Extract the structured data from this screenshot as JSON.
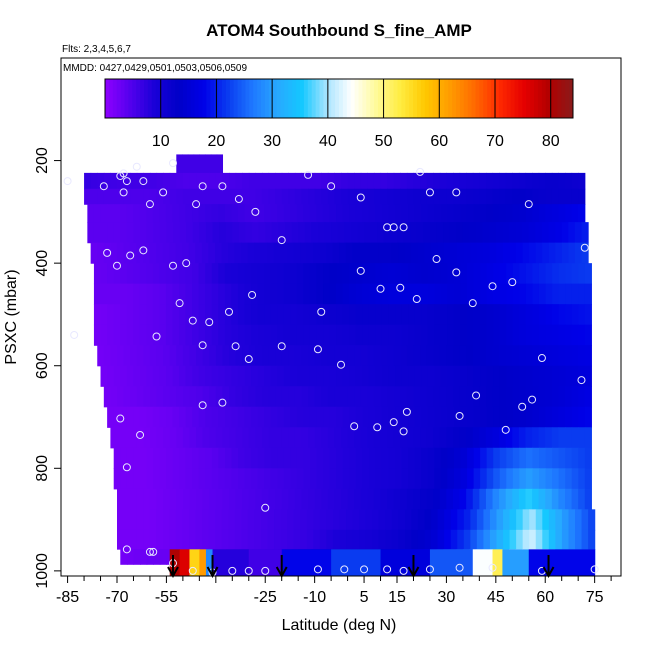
{
  "chart_data": {
    "type": "heatmap",
    "title": "ATOM4 Southbound S_fine_AMP",
    "subtitle_flights": "Flts: 2,3,4,5,6,7",
    "subtitle_dates": "MMDD: 0427,0429,0501,0503,0506,0509",
    "xlabel": "Latitude (deg N)",
    "ylabel": "PSXC (mbar)",
    "xlim": [
      -87,
      83
    ],
    "ylim": [
      1010,
      0
    ],
    "x_ticks": [
      -85,
      -70,
      -55,
      -40,
      -25,
      -10,
      5,
      15,
      30,
      45,
      60,
      75
    ],
    "x_tick_labels": [
      "-85",
      "-70",
      "-55",
      "-25",
      "-10",
      "5",
      "15",
      "30",
      "45",
      "60",
      "75"
    ],
    "x_tick_label_values": [
      -85,
      -70,
      -55,
      -25,
      -10,
      5,
      15,
      30,
      45,
      60,
      75
    ],
    "x_minor_ticks": [
      -80,
      -75,
      -65,
      -60,
      -50,
      -45,
      -35,
      -30,
      -20,
      -15,
      -5,
      0,
      10,
      20,
      25,
      35,
      40,
      50,
      55,
      65,
      70,
      80
    ],
    "y_ticks": [
      200,
      400,
      600,
      800,
      1000
    ],
    "y_tick_labels": [
      "200",
      "400",
      "600",
      "800",
      "1000"
    ],
    "colorbar": {
      "min": 0,
      "max": 84,
      "ticks": [
        10,
        20,
        30,
        40,
        50,
        60,
        70,
        80
      ],
      "tick_labels": [
        "10",
        "20",
        "30",
        "40",
        "50",
        "60",
        "70",
        "80"
      ],
      "colors": [
        "#8f00ff",
        "#5500ee",
        "#1a00d8",
        "#0000c8",
        "#0000e8",
        "#0a3cf0",
        "#1e78ff",
        "#28a8ff",
        "#14c8ff",
        "#a8e4ff",
        "#ffffff",
        "#fffa9a",
        "#ffec40",
        "#ffc800",
        "#ff9c00",
        "#ff6a00",
        "#ff2a00",
        "#e60000",
        "#b30000",
        "#8a1a1a"
      ]
    },
    "arrows_latitude": [
      -53,
      -41,
      -20,
      20,
      61
    ],
    "bands": [
      {
        "p": 210,
        "lat": [
          -52,
          -38
        ],
        "values": [
          6
        ]
      },
      {
        "p": 240,
        "lat": [
          -80,
          72
        ],
        "values": [
          7,
          6,
          6,
          5,
          5,
          6,
          6,
          6,
          7,
          7,
          8,
          9,
          10,
          11,
          12,
          11
        ]
      },
      {
        "p": 270,
        "lat": [
          -80,
          72
        ],
        "values": [
          5,
          5,
          5,
          6,
          6,
          6,
          7,
          8,
          9,
          10,
          11,
          11,
          12,
          13,
          12,
          12
        ]
      },
      {
        "p": 300,
        "lat": [
          -79,
          72
        ],
        "values": [
          4,
          4,
          5,
          6,
          7,
          6,
          7,
          8,
          9,
          10,
          11,
          12,
          13,
          14,
          16,
          18
        ]
      },
      {
        "p": 340,
        "lat": [
          -79,
          73
        ],
        "values": [
          4,
          4,
          5,
          6,
          8,
          7,
          8,
          9,
          10,
          11,
          12,
          13,
          14,
          15,
          17,
          20
        ]
      },
      {
        "p": 380,
        "lat": [
          -78,
          73
        ],
        "values": [
          3,
          4,
          5,
          6,
          8,
          9,
          10,
          11,
          13,
          13,
          14,
          15,
          16,
          18,
          20,
          22
        ]
      },
      {
        "p": 420,
        "lat": [
          -77,
          74
        ],
        "values": [
          3,
          4,
          5,
          6,
          9,
          10,
          11,
          13,
          14,
          15,
          14,
          15,
          17,
          19,
          21,
          22
        ]
      },
      {
        "p": 460,
        "lat": [
          -77,
          74
        ],
        "values": [
          3,
          3,
          4,
          6,
          8,
          10,
          11,
          13,
          15,
          16,
          16,
          15,
          17,
          18,
          20,
          20
        ]
      },
      {
        "p": 500,
        "lat": [
          -77,
          74
        ],
        "values": [
          2,
          3,
          4,
          6,
          8,
          10,
          10,
          11,
          12,
          12,
          12,
          13,
          14,
          16,
          18,
          19
        ]
      },
      {
        "p": 540,
        "lat": [
          -77,
          74
        ],
        "values": [
          2,
          3,
          4,
          6,
          8,
          9,
          10,
          10,
          11,
          11,
          12,
          13,
          14,
          16,
          17,
          18
        ]
      },
      {
        "p": 580,
        "lat": [
          -76,
          74
        ],
        "values": [
          2,
          3,
          4,
          6,
          8,
          9,
          9,
          10,
          10,
          11,
          12,
          13,
          14,
          15,
          16,
          17
        ]
      },
      {
        "p": 620,
        "lat": [
          -75,
          74
        ],
        "values": [
          2,
          3,
          4,
          6,
          7,
          8,
          9,
          9,
          10,
          11,
          11,
          12,
          13,
          14,
          15,
          16
        ]
      },
      {
        "p": 660,
        "lat": [
          -74,
          74
        ],
        "values": [
          2,
          3,
          4,
          5,
          7,
          8,
          8,
          9,
          9,
          10,
          11,
          12,
          13,
          14,
          15,
          17
        ]
      },
      {
        "p": 700,
        "lat": [
          -73,
          74
        ],
        "values": [
          2,
          2,
          3,
          5,
          6,
          7,
          8,
          8,
          9,
          10,
          11,
          12,
          13,
          14,
          16,
          18
        ]
      },
      {
        "p": 740,
        "lat": [
          -72,
          74
        ],
        "values": [
          2,
          2,
          3,
          5,
          6,
          7,
          7,
          8,
          9,
          10,
          11,
          13,
          16,
          20,
          22,
          22
        ]
      },
      {
        "p": 780,
        "lat": [
          -71,
          74
        ],
        "values": [
          2,
          2,
          3,
          4,
          6,
          7,
          7,
          8,
          9,
          10,
          12,
          15,
          22,
          26,
          24,
          22
        ]
      },
      {
        "p": 820,
        "lat": [
          -71,
          74
        ],
        "values": [
          2,
          2,
          3,
          4,
          5,
          6,
          7,
          8,
          9,
          10,
          12,
          16,
          24,
          30,
          26,
          22
        ]
      },
      {
        "p": 860,
        "lat": [
          -70,
          74
        ],
        "values": [
          2,
          2,
          3,
          4,
          5,
          6,
          7,
          8,
          9,
          11,
          13,
          18,
          28,
          36,
          28,
          22
        ]
      },
      {
        "p": 900,
        "lat": [
          -70,
          75
        ],
        "values": [
          2,
          2,
          3,
          4,
          5,
          6,
          7,
          8,
          9,
          11,
          14,
          20,
          30,
          40,
          30,
          22
        ]
      },
      {
        "p": 940,
        "lat": [
          -70,
          75
        ],
        "values": [
          2,
          2,
          3,
          4,
          5,
          6,
          7,
          9,
          10,
          12,
          15,
          22,
          32,
          42,
          30,
          22
        ]
      },
      {
        "p": 975,
        "lat": [
          -69,
          75
        ],
        "values": [
          2,
          3,
          3,
          4,
          6,
          7,
          9,
          11,
          13,
          15,
          18,
          24,
          34,
          46,
          32,
          24
        ]
      }
    ],
    "surface_row": {
      "p": 1000,
      "segments": [
        {
          "lat": [
            -54,
            -51
          ],
          "value": 80
        },
        {
          "lat": [
            -51,
            -48
          ],
          "value": 76
        },
        {
          "lat": [
            -48,
            -45
          ],
          "value": 56
        },
        {
          "lat": [
            -45,
            -43
          ],
          "value": 62
        },
        {
          "lat": [
            -43,
            -41
          ],
          "value": 28
        },
        {
          "lat": [
            -41,
            -30
          ],
          "value": 8
        },
        {
          "lat": [
            -30,
            -20
          ],
          "value": 6
        },
        {
          "lat": [
            -20,
            -5
          ],
          "value": 18
        },
        {
          "lat": [
            -5,
            10
          ],
          "value": 22
        },
        {
          "lat": [
            10,
            25
          ],
          "value": 16
        },
        {
          "lat": [
            25,
            38
          ],
          "value": 24
        },
        {
          "lat": [
            38,
            44
          ],
          "value": 44
        },
        {
          "lat": [
            44,
            47
          ],
          "value": 52
        },
        {
          "lat": [
            47,
            55
          ],
          "value": 30
        },
        {
          "lat": [
            55,
            75
          ],
          "value": 18
        }
      ]
    },
    "sample_points": [
      [
        -85,
        240
      ],
      [
        -74,
        250
      ],
      [
        -69,
        230
      ],
      [
        -68,
        225
      ],
      [
        -67,
        240
      ],
      [
        -68,
        262
      ],
      [
        -64,
        212
      ],
      [
        -62,
        240
      ],
      [
        -60,
        285
      ],
      [
        -56,
        262
      ],
      [
        -53,
        205
      ],
      [
        -46,
        285
      ],
      [
        -44,
        250
      ],
      [
        -38,
        250
      ],
      [
        -33,
        275
      ],
      [
        -28,
        300
      ],
      [
        -20,
        355
      ],
      [
        -12,
        228
      ],
      [
        -5,
        250
      ],
      [
        4,
        272
      ],
      [
        12,
        330
      ],
      [
        14,
        330
      ],
      [
        17,
        330
      ],
      [
        22,
        222
      ],
      [
        25,
        262
      ],
      [
        33,
        262
      ],
      [
        55,
        285
      ],
      [
        -73,
        380
      ],
      [
        -70,
        405
      ],
      [
        -66,
        385
      ],
      [
        -62,
        375
      ],
      [
        -53,
        405
      ],
      [
        -49,
        400
      ],
      [
        -51,
        478
      ],
      [
        -47,
        512
      ],
      [
        -44,
        560
      ],
      [
        -36,
        495
      ],
      [
        -29,
        462
      ],
      [
        -8,
        495
      ],
      [
        4,
        415
      ],
      [
        10,
        450
      ],
      [
        16,
        448
      ],
      [
        21,
        470
      ],
      [
        27,
        392
      ],
      [
        33,
        418
      ],
      [
        38,
        478
      ],
      [
        44,
        445
      ],
      [
        50,
        437
      ],
      [
        72,
        370
      ],
      [
        -83,
        540
      ],
      [
        -58,
        543
      ],
      [
        -42,
        515
      ],
      [
        -34,
        562
      ],
      [
        -30,
        587
      ],
      [
        -20,
        562
      ],
      [
        -9,
        568
      ],
      [
        -2,
        598
      ],
      [
        59,
        585
      ],
      [
        71,
        628
      ],
      [
        -69,
        703
      ],
      [
        -63,
        735
      ],
      [
        -44,
        677
      ],
      [
        -38,
        672
      ],
      [
        2,
        718
      ],
      [
        9,
        720
      ],
      [
        14,
        710
      ],
      [
        17,
        728
      ],
      [
        18,
        690
      ],
      [
        34,
        698
      ],
      [
        39,
        658
      ],
      [
        48,
        725
      ],
      [
        53,
        680
      ],
      [
        56,
        666
      ],
      [
        -67,
        798
      ],
      [
        -25,
        877
      ],
      [
        -67,
        958
      ],
      [
        -60,
        963
      ],
      [
        -59,
        963
      ],
      [
        -53,
        985
      ],
      [
        -47,
        1000
      ],
      [
        -41,
        1003
      ],
      [
        -35,
        1000
      ],
      [
        -30,
        1000
      ],
      [
        -25,
        1000
      ],
      [
        -9,
        997
      ],
      [
        -1,
        997
      ],
      [
        5,
        997
      ],
      [
        12,
        997
      ],
      [
        17,
        1000
      ],
      [
        25,
        997
      ],
      [
        34,
        994
      ],
      [
        44,
        994
      ],
      [
        59,
        1000
      ],
      [
        75,
        997
      ]
    ]
  }
}
